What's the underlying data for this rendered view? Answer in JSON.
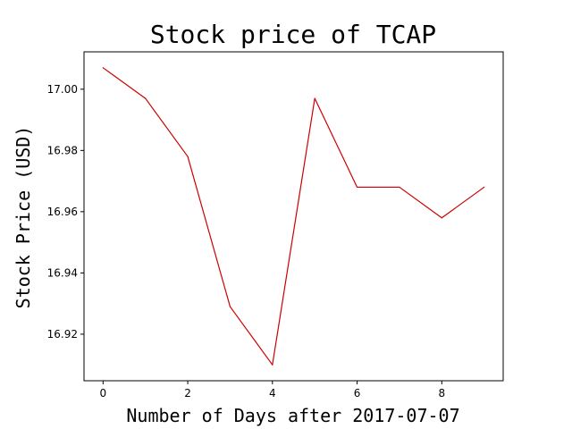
{
  "chart_data": {
    "type": "line",
    "title": "Stock price of TCAP",
    "xlabel": "Number of Days after 2017-07-07",
    "ylabel": "Stock Price (USD)",
    "x": [
      0,
      1,
      2,
      3,
      4,
      5,
      6,
      7,
      8,
      9
    ],
    "series": [
      {
        "color": "#cc0000",
        "values": [
          17.007,
          16.997,
          16.978,
          16.929,
          16.91,
          16.997,
          16.968,
          16.968,
          16.958,
          16.968
        ]
      }
    ],
    "xlim": [
      -0.45,
      9.45
    ],
    "ylim": [
      16.9048,
      17.0122
    ],
    "xticks": [
      0,
      2,
      4,
      6,
      8
    ],
    "xtick_labels": [
      "0",
      "2",
      "4",
      "6",
      "8"
    ],
    "yticks": [
      16.92,
      16.94,
      16.96,
      16.98,
      17.0
    ],
    "ytick_labels": [
      "16.92",
      "16.94",
      "16.96",
      "16.98",
      "17.00"
    ],
    "grid": false,
    "legend": "none"
  }
}
